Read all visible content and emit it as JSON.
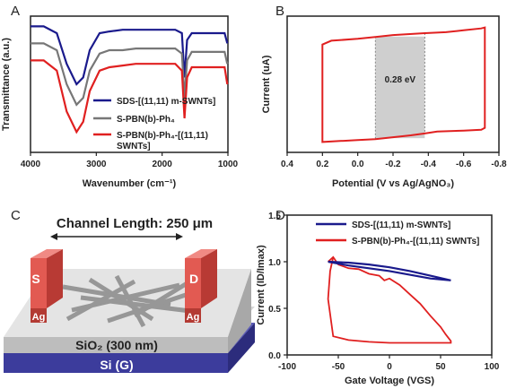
{
  "panels": {
    "a": {
      "letter": "A"
    },
    "b": {
      "letter": "B"
    },
    "c": {
      "letter": "C"
    },
    "d": {
      "letter": "D"
    }
  },
  "chart_data": [
    {
      "id": "A",
      "type": "line",
      "xlabel": "Wavenumber (cm⁻¹)",
      "ylabel": "Transmittance (a.u.)",
      "xlim": [
        4000,
        1000
      ],
      "x_ticks": [
        "4000",
        "3000",
        "2000",
        "1000"
      ],
      "legend_position": "bottom-right",
      "series": [
        {
          "name": "SDS-[(11,11) m-SWNTs]",
          "color": "#1a1a8c",
          "x": [
            4000,
            3800,
            3600,
            3450,
            3300,
            3200,
            3100,
            2950,
            2800,
            2600,
            2400,
            2200,
            2000,
            1800,
            1700,
            1660,
            1620,
            1550,
            1400,
            1200,
            1050,
            1010
          ],
          "y": [
            97,
            97,
            95,
            86,
            80,
            82,
            90,
            95,
            95.5,
            96,
            96,
            96,
            96,
            96,
            95,
            82,
            93,
            95,
            95,
            95,
            95,
            92
          ]
        },
        {
          "name": "S-PBN(b)-Ph₄",
          "color": "#777777",
          "x": [
            4000,
            3800,
            3600,
            3450,
            3300,
            3200,
            3100,
            2950,
            2800,
            2600,
            2400,
            2200,
            2000,
            1800,
            1700,
            1660,
            1620,
            1550,
            1400,
            1200,
            1050,
            1010
          ],
          "y": [
            92,
            92,
            90,
            80,
            74,
            76,
            84,
            89,
            90,
            90,
            90.5,
            90.5,
            90.5,
            90.5,
            89,
            76,
            87,
            89.5,
            89.5,
            89.5,
            89.5,
            86
          ]
        },
        {
          "name": "S-PBN(b)-Ph₄-[(11,11) SWNTs]",
          "color": "#e02020",
          "x": [
            4000,
            3800,
            3600,
            3450,
            3300,
            3200,
            3100,
            2950,
            2800,
            2600,
            2400,
            2200,
            2000,
            1800,
            1700,
            1660,
            1620,
            1550,
            1400,
            1200,
            1050,
            1010
          ],
          "y": [
            87,
            87,
            84,
            72,
            66,
            69,
            78,
            84,
            85,
            85.5,
            86,
            86,
            86,
            86,
            84,
            70,
            82,
            85,
            85,
            85,
            85,
            80
          ]
        }
      ]
    },
    {
      "id": "B",
      "type": "line",
      "xlabel": "Potential (V vs Ag/AgNO₃)",
      "ylabel": "Current (uA)",
      "xlim": [
        0.4,
        -0.8
      ],
      "x_ticks": [
        "0.4",
        "0.2",
        "0.0",
        "-0.2",
        "-0.4",
        "-0.6",
        "-0.8"
      ],
      "annotation": "0.28 eV",
      "shaded_region": [
        -0.1,
        -0.38
      ],
      "series": [
        {
          "name": "",
          "color": "#e02020",
          "x": [
            0.2,
            0.2,
            0.15,
            0.0,
            -0.1,
            -0.2,
            -0.38,
            -0.5,
            -0.6,
            -0.7,
            -0.72,
            -0.72,
            -0.7,
            -0.6,
            -0.45,
            -0.38,
            -0.3,
            -0.2,
            -0.1,
            0.0,
            0.1,
            0.2,
            0.2
          ],
          "y": [
            0.3,
            5.2,
            5.4,
            5.5,
            5.6,
            5.7,
            5.8,
            5.85,
            5.95,
            6.05,
            6.1,
            0.8,
            0.7,
            0.65,
            0.6,
            0.5,
            0.4,
            0.3,
            0.2,
            0.15,
            0.1,
            0.05,
            0.3
          ]
        }
      ]
    },
    {
      "id": "C",
      "type": "other",
      "channel_label": "Channel Length: 250 μm",
      "electrode_source": "S",
      "electrode_drain": "D",
      "contact_metal_left": "Ag",
      "contact_metal_right": "Ag",
      "dielectric": "SiO₂ (300 nm)",
      "gate": "Si (G)"
    },
    {
      "id": "D",
      "type": "line",
      "xlabel": "Gate Voltage (VGS)",
      "ylabel": "Current (ID/Imax)",
      "xlim": [
        -100,
        100
      ],
      "ylim": [
        0.0,
        1.5
      ],
      "x_ticks": [
        "-100",
        "-50",
        "0",
        "50",
        "100"
      ],
      "y_ticks": [
        "0.0",
        "0.5",
        "1.0",
        "1.5"
      ],
      "legend_position": "top",
      "series": [
        {
          "name": "SDS-[(11,11) m-SWNTs]",
          "color": "#1a1a8c",
          "x": [
            -60,
            -40,
            -20,
            0,
            20,
            40,
            60,
            40,
            20,
            0,
            -20,
            -40,
            -60
          ],
          "y": [
            1.0,
            0.99,
            0.97,
            0.94,
            0.9,
            0.85,
            0.8,
            0.82,
            0.86,
            0.9,
            0.93,
            0.96,
            1.0
          ]
        },
        {
          "name": "S-PBN(b)-Ph₄-[(11,11) SWNTs]",
          "color": "#e02020",
          "x": [
            -60,
            -55,
            -50,
            -40,
            -30,
            -20,
            -10,
            -5,
            0,
            10,
            20,
            30,
            40,
            50,
            55,
            60,
            60,
            40,
            20,
            0,
            -20,
            -40,
            -55,
            -60,
            -58,
            -55
          ],
          "y": [
            1.0,
            1.05,
            0.97,
            0.93,
            0.92,
            0.87,
            0.85,
            0.8,
            0.82,
            0.75,
            0.65,
            0.55,
            0.42,
            0.3,
            0.22,
            0.15,
            0.13,
            0.13,
            0.13,
            0.13,
            0.14,
            0.16,
            0.2,
            0.6,
            0.9,
            1.05
          ]
        }
      ]
    }
  ]
}
